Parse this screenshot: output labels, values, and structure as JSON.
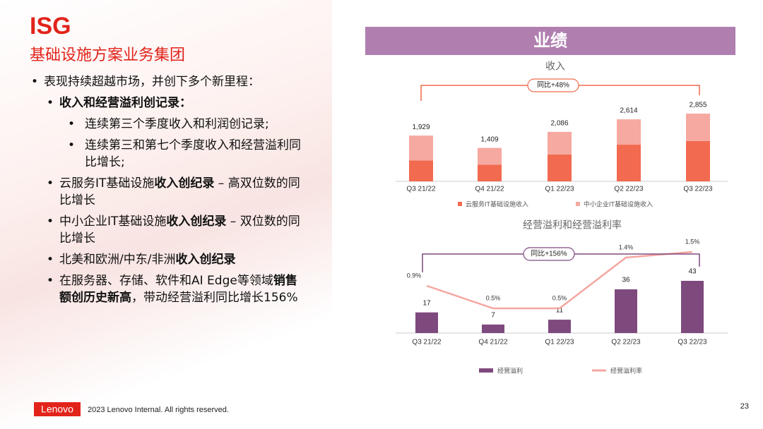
{
  "header": {
    "title": "ISG",
    "subtitle": "基础设施方案业务集团"
  },
  "bullets": [
    {
      "runs": [
        {
          "text": "表现持续超越市场，并创下多个新里程："
        }
      ],
      "items": [
        {
          "runs": [
            {
              "strong": "收入和经营溢利创记录："
            }
          ],
          "items": [
            {
              "runs": [
                {
                  "text": "连续第三个季度收入和利润创记录;"
                }
              ]
            },
            {
              "runs": [
                {
                  "text": "连续第三和第七个季度收入和经营溢利同比增长;"
                }
              ]
            }
          ]
        },
        {
          "runs": [
            {
              "text": "云服务IT基础设施"
            },
            {
              "strong": "收入创纪录"
            },
            {
              "text": " – 高双位数的同比增长"
            }
          ]
        },
        {
          "runs": [
            {
              "text": "中小企业IT基础设施"
            },
            {
              "strong": "收入创纪录"
            },
            {
              "text": " – 双位数的同比增长"
            }
          ]
        },
        {
          "runs": [
            {
              "text": "北美和欧洲/中东/非洲"
            },
            {
              "strong": "收入创纪录"
            }
          ]
        },
        {
          "runs": [
            {
              "text": "在服务器、存储、软件和AI Edge等领域"
            },
            {
              "strong": "销售额创历史新高"
            },
            {
              "text": "，带动经营溢利同比增长156%"
            }
          ]
        }
      ]
    }
  ],
  "section_title": "业绩",
  "chart_data": [
    {
      "type": "stacked_bar",
      "title": "收入",
      "categories": [
        "Q3 21/22",
        "Q4 21/22",
        "Q1 22/23",
        "Q2 22/23",
        "Q3 22/23"
      ],
      "series": [
        {
          "name": "云服务IT基础设施收入",
          "color": "#f26a4f",
          "values": [
            880,
            705,
            1135,
            1545,
            1695
          ]
        },
        {
          "name": "中小企业IT基础设施收入",
          "color": "#f6a9a1",
          "values": [
            1049,
            704,
            951,
            1069,
            1160
          ]
        }
      ],
      "totals": [
        1929,
        1409,
        2086,
        2614,
        2855
      ],
      "total_labels": [
        "1,929",
        "1,409",
        "2,086",
        "2,614",
        "2,855"
      ],
      "annotation": "同比+48%"
    },
    {
      "type": "bar_line",
      "title": "经营溢利和经营溢利率",
      "categories": [
        "Q3 21/22",
        "Q4 21/22",
        "Q1 22/23",
        "Q2 22/23",
        "Q3 22/23"
      ],
      "series": [
        {
          "name": "经营溢利",
          "color": "#7e4a7e",
          "values": [
            17,
            7,
            11,
            36,
            43
          ]
        },
        {
          "name": "经营溢利率",
          "color": "#f4a7a0",
          "axis": "y2",
          "values": [
            0.9,
            0.5,
            0.5,
            1.4,
            1.5
          ],
          "value_labels": [
            "0.9%",
            "0.5%",
            "0.5%",
            "1.4%",
            "1.5%"
          ]
        }
      ],
      "annotation": "同比+156%"
    }
  ],
  "footer": {
    "logo": "Lenovo",
    "copyright": "2023 Lenovo Internal. All rights reserved.",
    "page": "23"
  }
}
